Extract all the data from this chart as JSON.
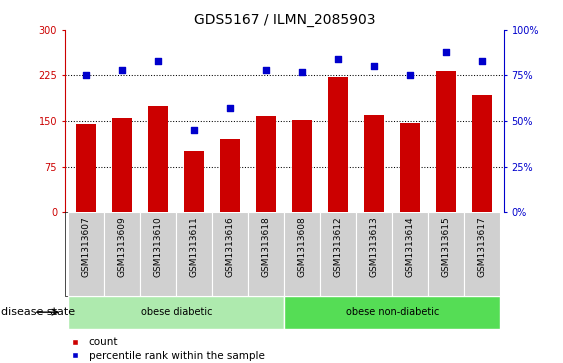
{
  "title": "GDS5167 / ILMN_2085903",
  "samples": [
    "GSM1313607",
    "GSM1313609",
    "GSM1313610",
    "GSM1313611",
    "GSM1313616",
    "GSM1313618",
    "GSM1313608",
    "GSM1313612",
    "GSM1313613",
    "GSM1313614",
    "GSM1313615",
    "GSM1313617"
  ],
  "bar_values": [
    145,
    155,
    175,
    100,
    120,
    158,
    152,
    222,
    160,
    147,
    232,
    192
  ],
  "dot_values": [
    75,
    78,
    83,
    45,
    57,
    78,
    77,
    84,
    80,
    75,
    88,
    83
  ],
  "bar_color": "#cc0000",
  "dot_color": "#0000cc",
  "ylim_left": [
    0,
    300
  ],
  "ylim_right": [
    0,
    100
  ],
  "yticks_left": [
    0,
    75,
    150,
    225,
    300
  ],
  "ytick_labels_left": [
    "0",
    "75",
    "150",
    "225",
    "300"
  ],
  "yticks_right": [
    0,
    25,
    50,
    75,
    100
  ],
  "ytick_labels_right": [
    "0%",
    "25%",
    "50%",
    "75%",
    "100%"
  ],
  "dotted_vals": [
    75,
    150,
    225
  ],
  "groups": [
    {
      "label": "obese diabetic",
      "start": 0,
      "end": 6,
      "color": "#aeeaae"
    },
    {
      "label": "obese non-diabetic",
      "start": 6,
      "end": 12,
      "color": "#55dd55"
    }
  ],
  "group_label": "disease state",
  "legend_bar_label": "count",
  "legend_dot_label": "percentile rank within the sample",
  "tick_area_color": "#d0d0d0",
  "title_fontsize": 10,
  "tick_fontsize": 7,
  "label_fontsize": 8
}
